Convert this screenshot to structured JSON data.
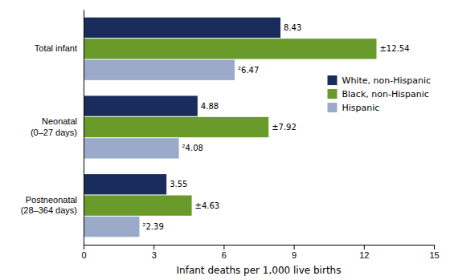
{
  "chart_data": {
    "type": "bar",
    "orientation": "horizontal",
    "categories": [
      "Total infant",
      "Neonatal\n(0–27 days)",
      "Postneonatal\n(28–364 days)"
    ],
    "series": [
      {
        "name": "White, non-Hispanic",
        "color": "#1a2c5b",
        "values": [
          8.43,
          4.88,
          3.55
        ],
        "value_labels": [
          "8.43",
          "4.88",
          "3.55"
        ]
      },
      {
        "name": "Black, non-Hispanic",
        "color": "#6a9a2a",
        "values": [
          12.54,
          7.92,
          4.63
        ],
        "value_labels": [
          "±12.54",
          "±7.92",
          "±4.63"
        ]
      },
      {
        "name": "Hispanic",
        "color": "#9baac8",
        "values": [
          6.47,
          4.08,
          2.39
        ],
        "value_labels": [
          "²6.47",
          "²4.08",
          "²2.39"
        ]
      }
    ],
    "xlabel": "Infant deaths per 1,000 live births",
    "xlim": [
      0,
      15
    ],
    "xticks": [
      0,
      3,
      6,
      9,
      12,
      15
    ],
    "grid": false,
    "legend": "upper right",
    "data_labels": true
  }
}
